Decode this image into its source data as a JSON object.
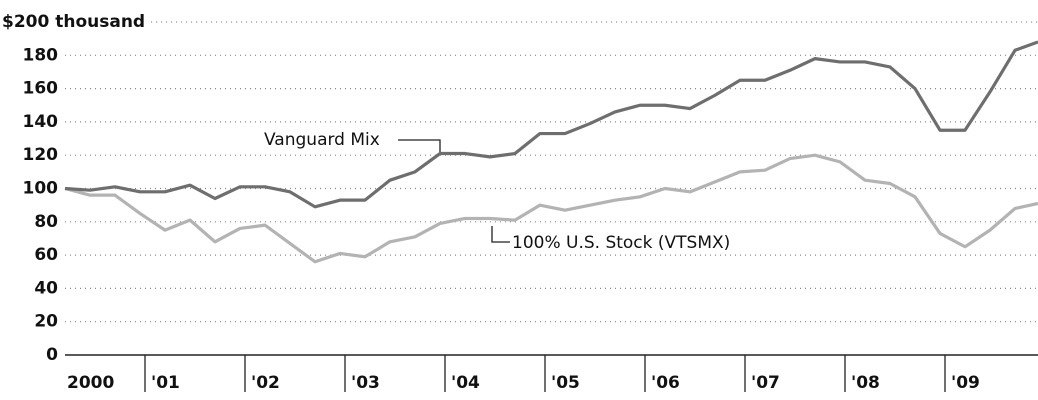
{
  "chart_data": {
    "type": "line",
    "x": [
      2000.2,
      2000.45,
      2000.7,
      2000.95,
      2001.2,
      2001.45,
      2001.7,
      2001.95,
      2002.2,
      2002.45,
      2002.7,
      2002.95,
      2003.2,
      2003.45,
      2003.7,
      2003.95,
      2004.2,
      2004.45,
      2004.7,
      2004.95,
      2005.2,
      2005.45,
      2005.7,
      2005.95,
      2006.2,
      2006.45,
      2006.7,
      2006.95,
      2007.2,
      2007.45,
      2007.7,
      2007.95,
      2008.2,
      2008.45,
      2008.7,
      2008.95,
      2009.2,
      2009.45,
      2009.7,
      2009.93
    ],
    "series": [
      {
        "name": "Vanguard Mix",
        "color": "#6e6e6e",
        "values": [
          100,
          99,
          101,
          98,
          98,
          102,
          94,
          101,
          101,
          98,
          89,
          93,
          93,
          105,
          110,
          121,
          121,
          119,
          121,
          133,
          133,
          139,
          146,
          150,
          150,
          148,
          156,
          165,
          165,
          171,
          178,
          176,
          176,
          173,
          160,
          135,
          135,
          158,
          183,
          188
        ]
      },
      {
        "name": "100% U.S. Stock (VTSMX)",
        "color": "#b3b3b3",
        "values": [
          100,
          96,
          96,
          85,
          75,
          81,
          68,
          76,
          78,
          67,
          56,
          61,
          59,
          68,
          71,
          79,
          82,
          82,
          81,
          90,
          87,
          90,
          93,
          95,
          100,
          98,
          104,
          110,
          111,
          118,
          120,
          116,
          105,
          103,
          95,
          73,
          65,
          75,
          88,
          91
        ]
      }
    ],
    "xlim": [
      2000,
      2009.93
    ],
    "xticks": [
      {
        "value": 2000,
        "label": "2000"
      },
      {
        "value": 2001,
        "label": "'01"
      },
      {
        "value": 2002,
        "label": "'02"
      },
      {
        "value": 2003,
        "label": "'03"
      },
      {
        "value": 2004,
        "label": "'04"
      },
      {
        "value": 2005,
        "label": "'05"
      },
      {
        "value": 2006,
        "label": "'06"
      },
      {
        "value": 2007,
        "label": "'07"
      },
      {
        "value": 2008,
        "label": "'08"
      },
      {
        "value": 2009,
        "label": "'09"
      }
    ],
    "ylim": [
      0,
      200
    ],
    "yticks": [
      0,
      20,
      40,
      60,
      80,
      100,
      120,
      140,
      160,
      180,
      {
        "value": 200,
        "label": "$200 thousand"
      }
    ],
    "grid": true
  }
}
